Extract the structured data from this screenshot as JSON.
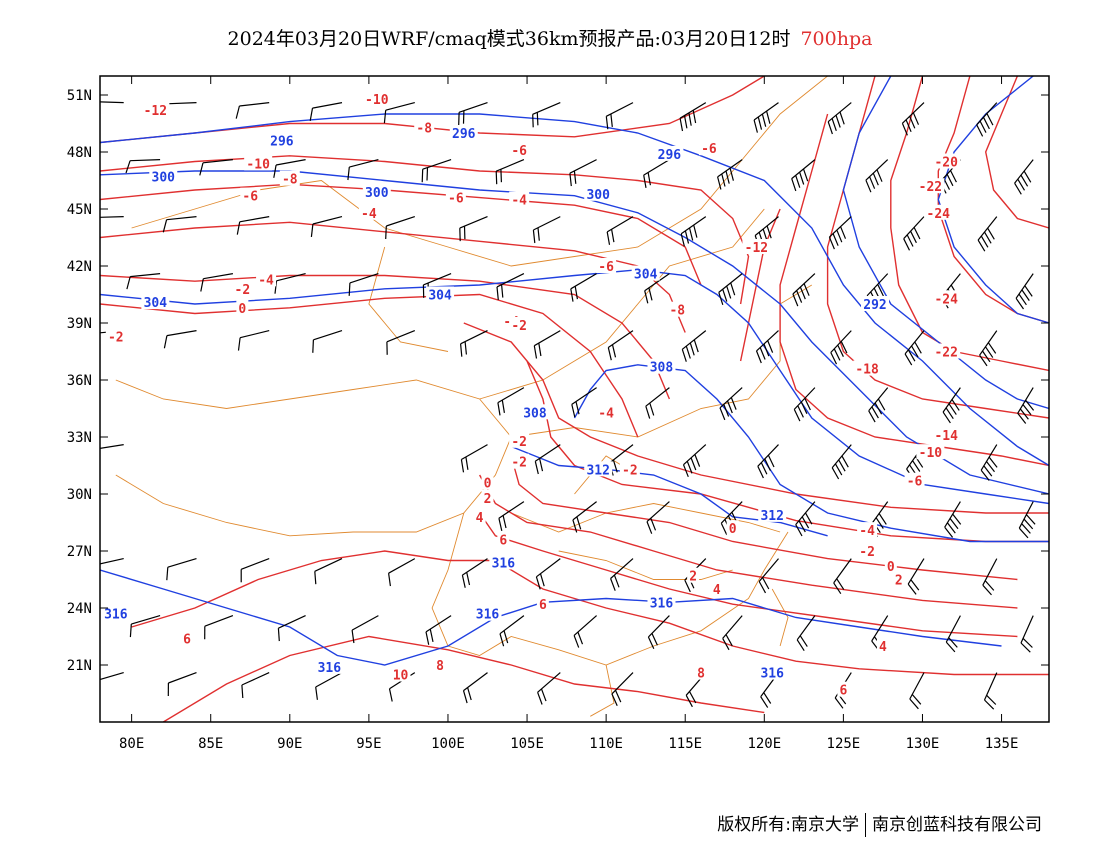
{
  "title": {
    "main": "2024年03月20日WRF/cmaq模式36km预报产品:03月20日12时",
    "level": "700hpa",
    "level_color": "#e03030"
  },
  "footer": {
    "left": "版权所有:南京大学",
    "right": "南京创蓝科技有限公司"
  },
  "map_data": {
    "lon_range": [
      78,
      138
    ],
    "lat_range": [
      18,
      52
    ],
    "x_ticks": [
      "80E",
      "85E",
      "90E",
      "95E",
      "100E",
      "105E",
      "110E",
      "115E",
      "120E",
      "125E",
      "130E",
      "135E"
    ],
    "y_ticks": [
      "51N",
      "48N",
      "45N",
      "42N",
      "39N",
      "36N",
      "33N",
      "30N",
      "27N",
      "24N",
      "21N"
    ],
    "colors": {
      "temperature": "#e03030",
      "height": "#2040e0",
      "boundary": "#e08a30",
      "wind": "#000000"
    },
    "temperature_labels": [
      {
        "text": "-12",
        "lon": 81.5,
        "lat": 50.2
      },
      {
        "text": "-10",
        "lon": 95.5,
        "lat": 50.8
      },
      {
        "text": "-8",
        "lon": 98.5,
        "lat": 49.3
      },
      {
        "text": "-6",
        "lon": 104.5,
        "lat": 48.1
      },
      {
        "text": "-6",
        "lon": 116.5,
        "lat": 48.2
      },
      {
        "text": "-10",
        "lon": 88.0,
        "lat": 47.4
      },
      {
        "text": "-8",
        "lon": 90.0,
        "lat": 46.6
      },
      {
        "text": "-6",
        "lon": 87.5,
        "lat": 45.7
      },
      {
        "text": "-6",
        "lon": 100.5,
        "lat": 45.6
      },
      {
        "text": "-4",
        "lon": 104.5,
        "lat": 45.5
      },
      {
        "text": "-4",
        "lon": 95.0,
        "lat": 44.8
      },
      {
        "text": "-12",
        "lon": 119.5,
        "lat": 43.0
      },
      {
        "text": "-4",
        "lon": 88.5,
        "lat": 41.3
      },
      {
        "text": "-2",
        "lon": 87.0,
        "lat": 40.8
      },
      {
        "text": "0",
        "lon": 87.0,
        "lat": 39.8
      },
      {
        "text": "-6",
        "lon": 110.0,
        "lat": 42.0
      },
      {
        "text": "-8",
        "lon": 114.5,
        "lat": 39.7
      },
      {
        "text": "-4",
        "lon": 104.0,
        "lat": 39.1
      },
      {
        "text": "-2",
        "lon": 104.5,
        "lat": 38.9
      },
      {
        "text": "-2",
        "lon": 79.0,
        "lat": 38.3
      },
      {
        "text": "-4",
        "lon": 110.0,
        "lat": 34.3
      },
      {
        "text": "-2",
        "lon": 104.5,
        "lat": 32.8
      },
      {
        "text": "-2",
        "lon": 104.5,
        "lat": 31.7
      },
      {
        "text": "-2",
        "lon": 111.5,
        "lat": 31.3
      },
      {
        "text": "0",
        "lon": 102.5,
        "lat": 30.6
      },
      {
        "text": "2",
        "lon": 102.5,
        "lat": 29.8
      },
      {
        "text": "4",
        "lon": 102.0,
        "lat": 28.8
      },
      {
        "text": "6",
        "lon": 103.5,
        "lat": 27.6
      },
      {
        "text": "0",
        "lon": 118.0,
        "lat": 28.2
      },
      {
        "text": "2",
        "lon": 115.5,
        "lat": 25.7
      },
      {
        "text": "4",
        "lon": 117.0,
        "lat": 25.0
      },
      {
        "text": "6",
        "lon": 106.0,
        "lat": 24.2
      },
      {
        "text": "6",
        "lon": 83.5,
        "lat": 22.4
      },
      {
        "text": "8",
        "lon": 99.5,
        "lat": 21.0
      },
      {
        "text": "10",
        "lon": 97.0,
        "lat": 20.5
      },
      {
        "text": "8",
        "lon": 116.0,
        "lat": 20.6
      },
      {
        "text": "-20",
        "lon": 131.5,
        "lat": 47.5
      },
      {
        "text": "-22",
        "lon": 130.5,
        "lat": 46.2
      },
      {
        "text": "-24",
        "lon": 131.0,
        "lat": 44.8
      },
      {
        "text": "-24",
        "lon": 131.5,
        "lat": 40.3
      },
      {
        "text": "-22",
        "lon": 131.5,
        "lat": 37.5
      },
      {
        "text": "-18",
        "lon": 126.5,
        "lat": 36.6
      },
      {
        "text": "-14",
        "lon": 131.5,
        "lat": 33.1
      },
      {
        "text": "-10",
        "lon": 130.5,
        "lat": 32.2
      },
      {
        "text": "-6",
        "lon": 129.5,
        "lat": 30.7
      },
      {
        "text": "-4",
        "lon": 126.5,
        "lat": 28.1
      },
      {
        "text": "-2",
        "lon": 126.5,
        "lat": 27.0
      },
      {
        "text": "0",
        "lon": 128.0,
        "lat": 26.2
      },
      {
        "text": "2",
        "lon": 128.5,
        "lat": 25.5
      },
      {
        "text": "4",
        "lon": 127.5,
        "lat": 22.0
      },
      {
        "text": "6",
        "lon": 125.0,
        "lat": 19.7
      }
    ],
    "height_labels": [
      {
        "text": "296",
        "lon": 89.5,
        "lat": 48.6
      },
      {
        "text": "296",
        "lon": 101.0,
        "lat": 49.0
      },
      {
        "text": "296",
        "lon": 114.0,
        "lat": 47.9
      },
      {
        "text": "300",
        "lon": 82.0,
        "lat": 46.7
      },
      {
        "text": "300",
        "lon": 95.5,
        "lat": 45.9
      },
      {
        "text": "300",
        "lon": 109.5,
        "lat": 45.8
      },
      {
        "text": "304",
        "lon": 81.5,
        "lat": 40.1
      },
      {
        "text": "304",
        "lon": 99.5,
        "lat": 40.5
      },
      {
        "text": "304",
        "lon": 112.5,
        "lat": 41.6
      },
      {
        "text": "292",
        "lon": 127.0,
        "lat": 40.0
      },
      {
        "text": "308",
        "lon": 113.5,
        "lat": 36.7
      },
      {
        "text": "308",
        "lon": 105.5,
        "lat": 34.3
      },
      {
        "text": "312",
        "lon": 109.5,
        "lat": 31.3
      },
      {
        "text": "312",
        "lon": 120.5,
        "lat": 28.9
      },
      {
        "text": "316",
        "lon": 79.0,
        "lat": 23.7
      },
      {
        "text": "316",
        "lon": 92.5,
        "lat": 20.9
      },
      {
        "text": "316",
        "lon": 103.5,
        "lat": 26.4
      },
      {
        "text": "316",
        "lon": 102.5,
        "lat": 23.7
      },
      {
        "text": "316",
        "lon": 113.5,
        "lat": 24.3
      },
      {
        "text": "316",
        "lon": 120.5,
        "lat": 20.6
      }
    ]
  }
}
